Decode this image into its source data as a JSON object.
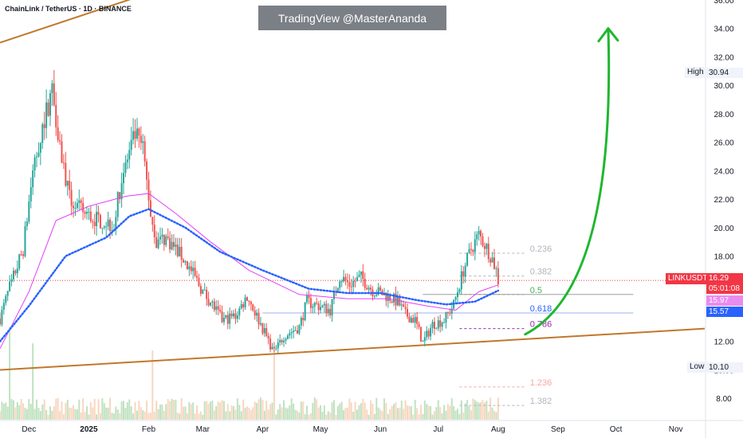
{
  "header": {
    "title": "ChainLink / TetherUS · 1D · BINANCE"
  },
  "watermark": "TradingView @MasterAnanda",
  "colors": {
    "up": "#26a69a",
    "down": "#ef5350",
    "sma_blue": "#2962ff",
    "ema_pink": "#e040fb",
    "trend": "#c0782a",
    "arrow": "#1fb72f",
    "price_line": "#f23645"
  },
  "chart_data": {
    "type": "candlestick",
    "symbol": "LINKUSDT",
    "ylim": [
      6.5,
      36
    ],
    "y_ticks": [
      "8.00",
      "10.00",
      "12.00",
      "14.00",
      "16.00",
      "18.00",
      "20.00",
      "22.00",
      "24.00",
      "26.00",
      "28.00",
      "30.00",
      "32.00",
      "34.00",
      "36.00"
    ],
    "x_ticks": [
      "Dec",
      "2025",
      "Feb",
      "Mar",
      "Apr",
      "May",
      "Jun",
      "Jul",
      "Aug",
      "Sep",
      "Oct",
      "Nov"
    ],
    "xlim": [
      "2024-11-16",
      "2025-11-16"
    ],
    "price_path": [
      [
        "2024-11-16",
        13.6
      ],
      [
        "2024-11-21",
        15.8
      ],
      [
        "2024-11-28",
        18.5
      ],
      [
        "2024-12-03",
        24.0
      ],
      [
        "2024-12-07",
        26.5
      ],
      [
        "2024-12-13",
        29.8
      ],
      [
        "2024-12-18",
        25.0
      ],
      [
        "2024-12-22",
        22.0
      ],
      [
        "2024-12-27",
        21.3
      ],
      [
        "2025-01-02",
        20.7
      ],
      [
        "2025-01-08",
        20.5
      ],
      [
        "2025-01-14",
        20.2
      ],
      [
        "2025-01-18",
        23.5
      ],
      [
        "2025-01-25",
        26.5
      ],
      [
        "2025-01-29",
        25.5
      ],
      [
        "2025-02-02",
        21.0
      ],
      [
        "2025-02-05",
        19.0
      ],
      [
        "2025-02-10",
        19.3
      ],
      [
        "2025-02-18",
        18.0
      ],
      [
        "2025-02-25",
        16.5
      ],
      [
        "2025-03-01",
        15.5
      ],
      [
        "2025-03-05",
        14.8
      ],
      [
        "2025-03-11",
        13.5
      ],
      [
        "2025-03-18",
        13.8
      ],
      [
        "2025-03-24",
        15.2
      ],
      [
        "2025-03-30",
        13.5
      ],
      [
        "2025-04-07",
        11.2
      ],
      [
        "2025-04-12",
        12.4
      ],
      [
        "2025-04-20",
        13.0
      ],
      [
        "2025-04-24",
        14.8
      ],
      [
        "2025-04-30",
        14.5
      ],
      [
        "2025-05-06",
        14.2
      ],
      [
        "2025-05-11",
        16.6
      ],
      [
        "2025-05-16",
        16.0
      ],
      [
        "2025-05-22",
        16.5
      ],
      [
        "2025-05-28",
        15.6
      ],
      [
        "2025-06-03",
        15.3
      ],
      [
        "2025-06-10",
        14.8
      ],
      [
        "2025-06-14",
        13.9
      ],
      [
        "2025-06-19",
        13.5
      ],
      [
        "2025-06-23",
        11.9
      ],
      [
        "2025-06-28",
        13.2
      ],
      [
        "2025-07-04",
        13.5
      ],
      [
        "2025-07-09",
        14.6
      ],
      [
        "2025-07-14",
        17.0
      ],
      [
        "2025-07-18",
        18.5
      ],
      [
        "2025-07-22",
        19.5
      ],
      [
        "2025-07-26",
        18.6
      ],
      [
        "2025-07-29",
        17.8
      ],
      [
        "2025-07-31",
        17.0
      ],
      [
        "2025-08-01",
        16.29
      ]
    ],
    "sma_blue": [
      [
        "2024-11-16",
        12.0
      ],
      [
        "2024-12-01",
        14.5
      ],
      [
        "2024-12-20",
        18.0
      ],
      [
        "2025-01-10",
        19.3
      ],
      [
        "2025-01-22",
        20.8
      ],
      [
        "2025-02-01",
        21.3
      ],
      [
        "2025-02-20",
        20.0
      ],
      [
        "2025-03-10",
        18.3
      ],
      [
        "2025-04-01",
        17.0
      ],
      [
        "2025-04-25",
        15.7
      ],
      [
        "2025-05-15",
        15.4
      ],
      [
        "2025-06-01",
        15.4
      ],
      [
        "2025-06-20",
        14.9
      ],
      [
        "2025-07-05",
        14.6
      ],
      [
        "2025-07-20",
        14.8
      ],
      [
        "2025-08-01",
        15.57
      ]
    ],
    "ema_pink": [
      [
        "2024-11-16",
        11.5
      ],
      [
        "2024-12-01",
        15.5
      ],
      [
        "2024-12-15",
        20.5
      ],
      [
        "2025-01-01",
        21.5
      ],
      [
        "2025-01-20",
        22.2
      ],
      [
        "2025-02-01",
        22.4
      ],
      [
        "2025-02-15",
        21.0
      ],
      [
        "2025-03-05",
        19.0
      ],
      [
        "2025-03-25",
        17.0
      ],
      [
        "2025-04-20",
        15.3
      ],
      [
        "2025-05-15",
        15.0
      ],
      [
        "2025-06-05",
        15.0
      ],
      [
        "2025-06-25",
        14.5
      ],
      [
        "2025-07-10",
        14.2
      ],
      [
        "2025-07-22",
        15.5
      ],
      [
        "2025-08-01",
        15.97
      ]
    ],
    "trendlines": [
      {
        "from": [
          "2024-11-16",
          10.0
        ],
        "to": [
          "2025-11-16",
          12.9
        ]
      },
      {
        "from": [
          "2024-11-16",
          33.0
        ],
        "to": [
          "2025-03-20",
          38.6
        ]
      }
    ],
    "fib_levels": [
      {
        "label": "0.236",
        "value": 18.2,
        "color": "#b2b5be"
      },
      {
        "label": "0.382",
        "value": 16.6,
        "color": "#b2b5be"
      },
      {
        "label": "0.5",
        "value": 15.3,
        "color": "#4caf50"
      },
      {
        "label": "0.618",
        "value": 14.0,
        "color": "#2962ff"
      },
      {
        "label": "0.786",
        "value": 12.9,
        "color": "#9c27b0"
      },
      {
        "label": "1.236",
        "value": 8.8,
        "color": "#f7a5a5"
      },
      {
        "label": "1.382",
        "value": 7.5,
        "color": "#b2b5be"
      }
    ],
    "projection_arrow": {
      "from": [
        "2025-08-15",
        12.5
      ],
      "to": [
        "2025-09-27",
        34.0
      ]
    },
    "high": 30.94,
    "low": 10.1,
    "last_price": 16.29,
    "countdown": "05:01:08",
    "ema_value": "15.97",
    "sma_value": "15.57"
  },
  "labels": {
    "high_label": "High",
    "high_value": "30.94",
    "low_label": "Low",
    "low_value": "10.10",
    "symbol_tag": "LINKUSDT",
    "price_value": "16.29",
    "countdown": "05:01:08",
    "ema_value": "15.97",
    "sma_value": "15.57"
  }
}
